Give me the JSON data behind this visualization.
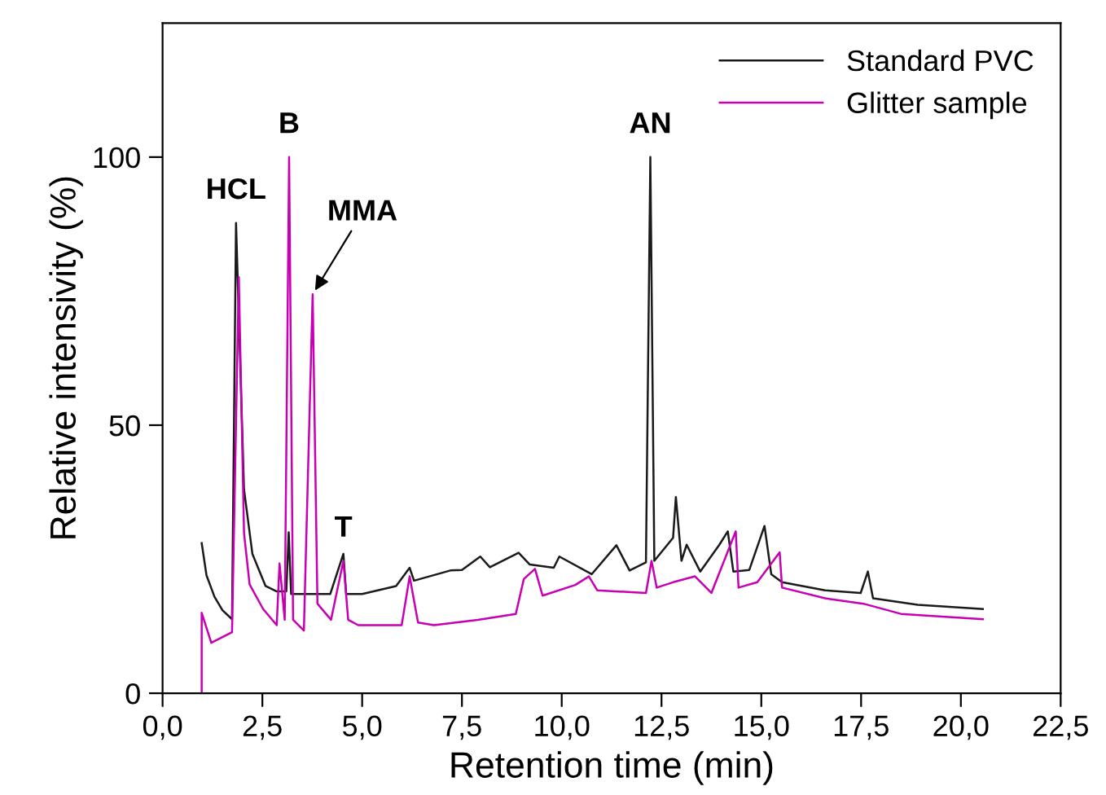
{
  "chart_data": {
    "type": "line",
    "xlabel": "Retention time (min)",
    "ylabel": "Relative intensivity (%)",
    "xlim": [
      0,
      22.5
    ],
    "ylim": [
      0,
      125
    ],
    "xticks": [
      {
        "value": 0,
        "label": "0,0"
      },
      {
        "value": 2.5,
        "label": "2,5"
      },
      {
        "value": 5,
        "label": "5,0"
      },
      {
        "value": 7.5,
        "label": "7,5"
      },
      {
        "value": 10,
        "label": "10,0"
      },
      {
        "value": 12.5,
        "label": "12,5"
      },
      {
        "value": 15,
        "label": "15,0"
      },
      {
        "value": 17.5,
        "label": "17,5"
      },
      {
        "value": 20,
        "label": "20,0"
      },
      {
        "value": 22.5,
        "label": "22,5"
      }
    ],
    "yticks": [
      0,
      50,
      100
    ],
    "grid": false,
    "legend": "top right",
    "marker": "none",
    "line_style": "solid",
    "series": [
      {
        "name": "Standard PVC",
        "color": "#1a1a1a",
        "x": [
          0.98,
          1.1,
          1.3,
          1.5,
          1.74,
          1.84,
          2.04,
          2.25,
          2.58,
          2.86,
          3.1,
          3.16,
          3.22,
          3.6,
          4.2,
          4.53,
          4.6,
          5.0,
          5.85,
          6.19,
          6.3,
          7.21,
          7.5,
          7.96,
          8.2,
          8.92,
          9.2,
          9.8,
          9.94,
          10.75,
          11.37,
          11.7,
          12.11,
          12.22,
          12.32,
          12.79,
          12.86,
          13.0,
          13.13,
          13.47,
          13.95,
          14.16,
          14.3,
          14.7,
          15.08,
          15.25,
          15.52,
          16.6,
          17.49,
          17.67,
          17.8,
          18.92,
          20.55
        ],
        "values": [
          28.0,
          22.0,
          18.0,
          15.5,
          13.8,
          87.7,
          38,
          26,
          20,
          19,
          19,
          30,
          18.5,
          18.5,
          18.5,
          26,
          18.5,
          18.5,
          20,
          23.4,
          21,
          22.9,
          23,
          25.5,
          23.5,
          26.2,
          24,
          23.4,
          25.5,
          22.2,
          27.6,
          22.9,
          24.4,
          100,
          24.7,
          29,
          36.6,
          24.7,
          27.7,
          22.7,
          27.7,
          30.2,
          22.7,
          23,
          31.2,
          22.2,
          20.7,
          19.2,
          18.7,
          22.7,
          17.7,
          16.5,
          15.7
        ]
      },
      {
        "name": "Glitter sample",
        "color": "#c800b4",
        "x": [
          0.98,
          0.98,
          1.22,
          1.74,
          1.91,
          2.04,
          2.18,
          2.52,
          2.86,
          2.93,
          3.06,
          3.17,
          3.27,
          3.54,
          3.76,
          3.88,
          4.22,
          4.53,
          4.65,
          4.9,
          5.99,
          6.19,
          6.4,
          6.8,
          7.9,
          8.85,
          9.05,
          9.33,
          9.52,
          10.34,
          10.68,
          10.89,
          12.11,
          12.25,
          12.38,
          12.79,
          13.34,
          13.75,
          14.36,
          14.43,
          14.9,
          15.46,
          15.52,
          16.6,
          17.56,
          18.5,
          20.55
        ],
        "values": [
          0,
          15.0,
          9.4,
          11.4,
          77.6,
          29.9,
          20.3,
          15.7,
          12.7,
          24.2,
          13.7,
          100,
          13.7,
          11.7,
          74.4,
          16.7,
          13.7,
          24.7,
          13.7,
          12.7,
          12.7,
          21.8,
          13.2,
          12.7,
          13.7,
          14.8,
          21.3,
          23.2,
          18.2,
          20.2,
          21.8,
          19.2,
          18.7,
          24.7,
          19.7,
          20.7,
          21.8,
          18.7,
          30.2,
          19.7,
          20.7,
          26.3,
          19.7,
          17.7,
          16.7,
          14.8,
          13.8
        ]
      }
    ],
    "annotations": [
      {
        "text": "HCL",
        "x": 1.84,
        "y": 87.7
      },
      {
        "text": "B",
        "x": 3.17,
        "y": 100
      },
      {
        "text": "MMA",
        "x": 3.76,
        "y": 74.4
      },
      {
        "text": "T",
        "x": 4.53,
        "y": 24.7
      },
      {
        "text": "AN",
        "x": 12.22,
        "y": 100
      }
    ]
  }
}
